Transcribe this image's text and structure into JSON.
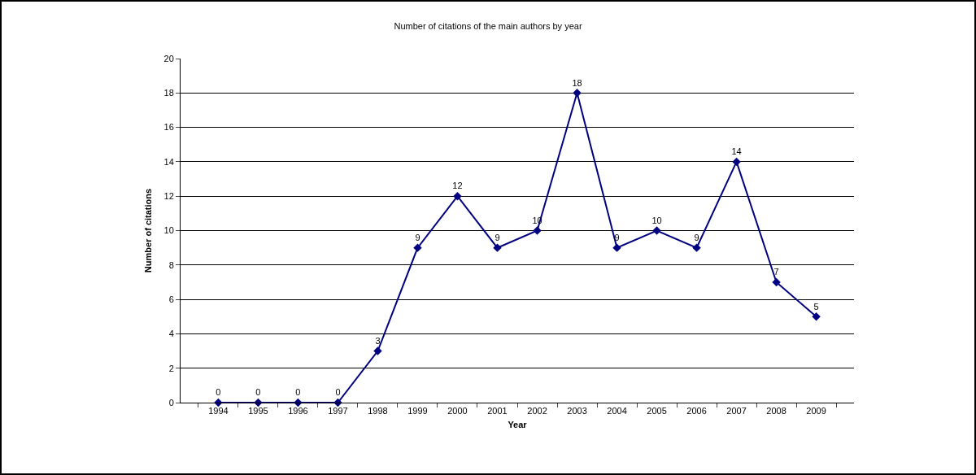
{
  "chart_data": {
    "type": "line",
    "title": "Number of citations of the main authors by year",
    "xlabel": "Year",
    "ylabel": "Number of citations",
    "categories": [
      "1994",
      "1995",
      "1996",
      "1997",
      "1998",
      "1999",
      "2000",
      "2001",
      "2002",
      "2003",
      "2004",
      "2005",
      "2006",
      "2007",
      "2008",
      "2009"
    ],
    "series": [
      {
        "color": "#000080",
        "values": [
          0,
          0,
          0,
          0,
          3,
          9,
          12,
          9,
          10,
          18,
          9,
          10,
          9,
          14,
          7,
          5
        ]
      }
    ],
    "ylim": [
      0,
      20
    ],
    "yticks": [
      0,
      2,
      4,
      6,
      8,
      10,
      12,
      14,
      16,
      18,
      20
    ],
    "grid": "y",
    "legend": false,
    "marker": "diamond",
    "line_style": "solid",
    "data_labels": true
  }
}
